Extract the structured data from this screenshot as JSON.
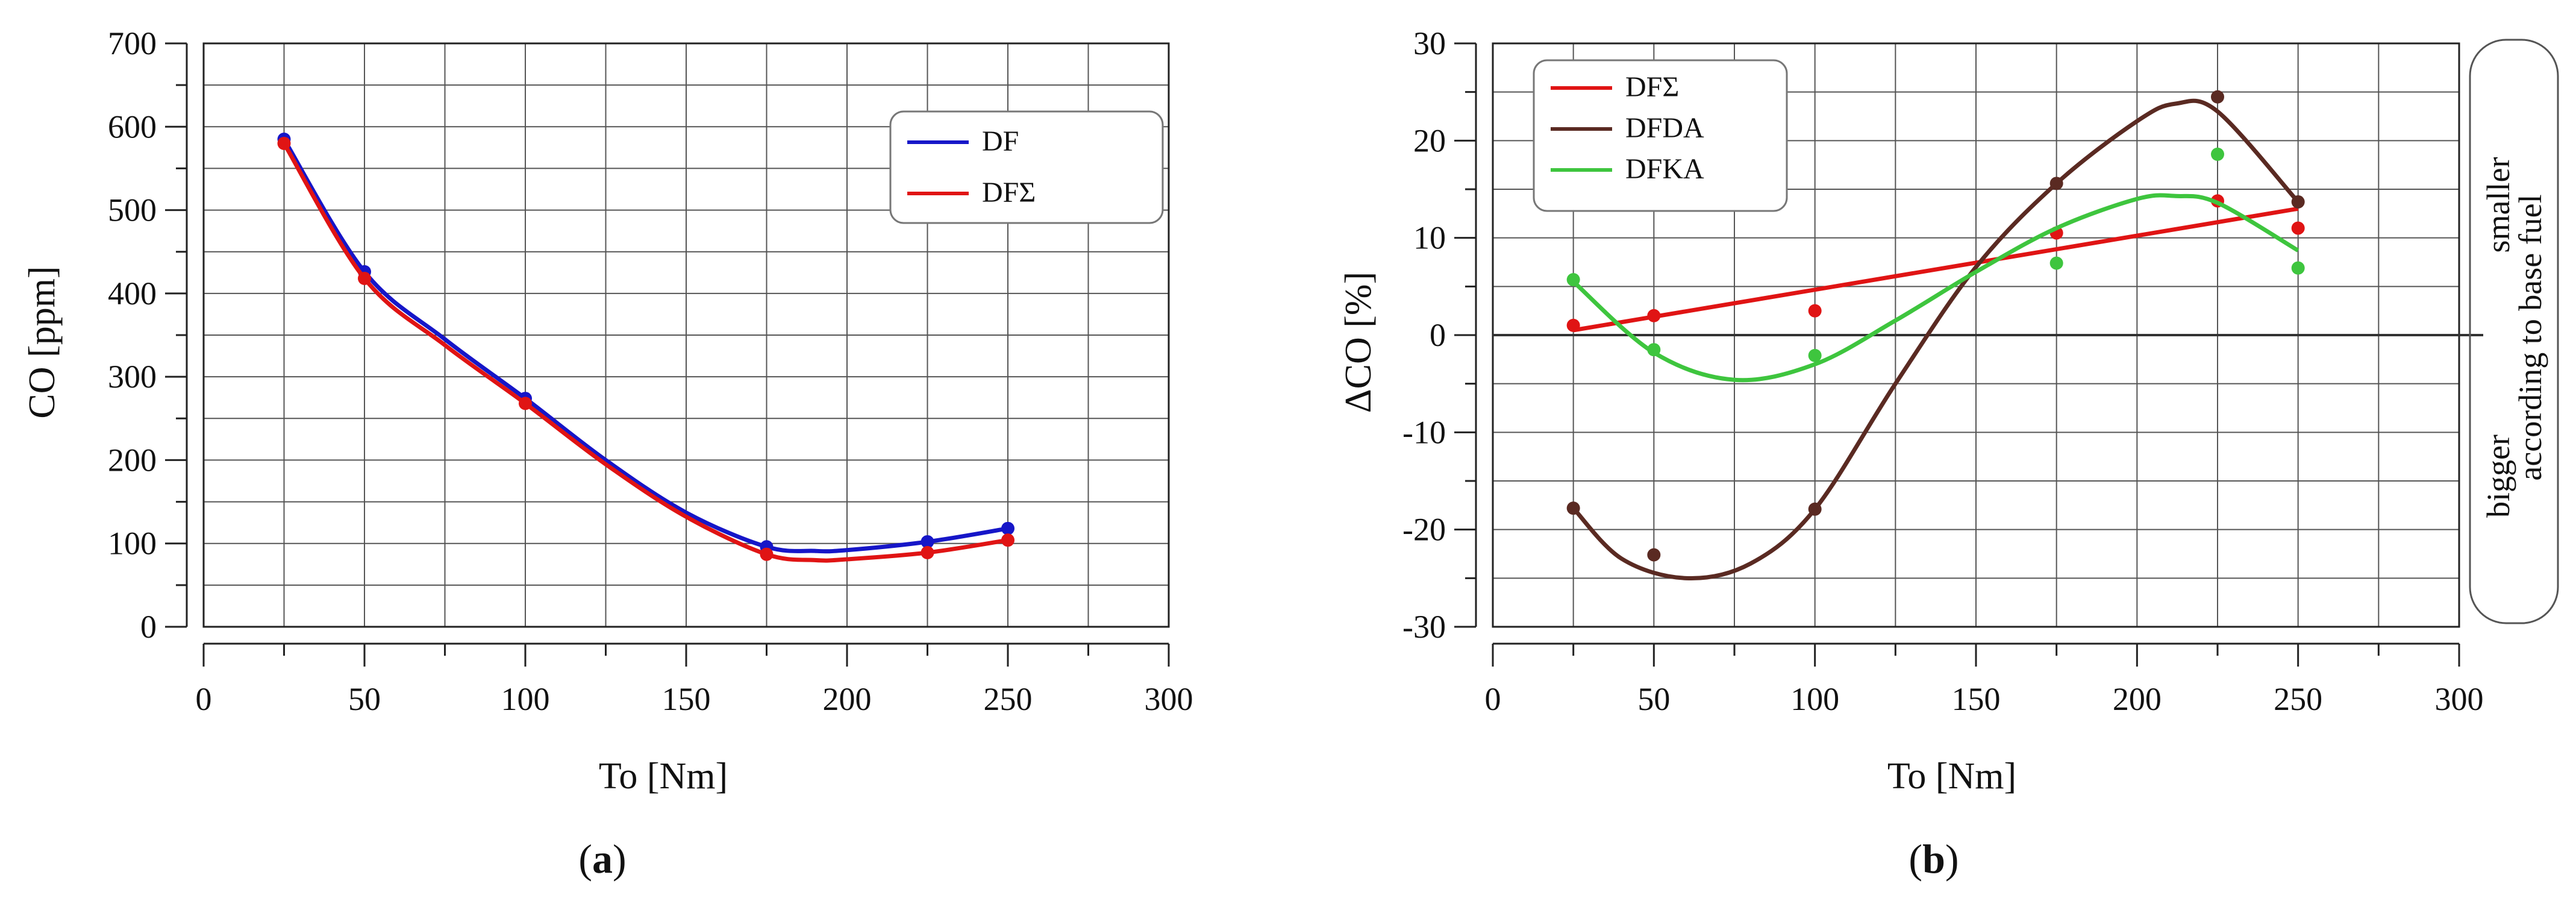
{
  "chart_data": [
    {
      "type": "line",
      "panel_label": "a",
      "xlabel": "To [Nm]",
      "ylabel": "CO [ppm]",
      "xlim": [
        0,
        300
      ],
      "ylim": [
        0,
        700
      ],
      "xticks": [
        0,
        50,
        100,
        150,
        200,
        250,
        300
      ],
      "yticks": [
        0,
        100,
        200,
        300,
        400,
        500,
        600,
        700
      ],
      "grid": true,
      "legend_position": "top-right",
      "series": [
        {
          "name": "DF",
          "color": "#1616c8",
          "points": [
            [
              25,
              585
            ],
            [
              50,
              426
            ],
            [
              100,
              274
            ],
            [
              175,
              96
            ],
            [
              225,
              102
            ],
            [
              250,
              118
            ]
          ],
          "curve": [
            [
              25,
              585
            ],
            [
              50,
              426
            ],
            [
              75,
              345
            ],
            [
              100,
              274
            ],
            [
              125,
              200
            ],
            [
              150,
              137
            ],
            [
              175,
              96
            ],
            [
              190,
              91
            ],
            [
              200,
              92
            ],
            [
              225,
              102
            ],
            [
              250,
              118
            ]
          ]
        },
        {
          "name": "DFΣ",
          "color": "#e01414",
          "points": [
            [
              25,
              580
            ],
            [
              50,
              418
            ],
            [
              100,
              268
            ],
            [
              175,
              87
            ],
            [
              225,
              89
            ],
            [
              250,
              104
            ]
          ],
          "curve": [
            [
              25,
              580
            ],
            [
              50,
              418
            ],
            [
              75,
              338
            ],
            [
              100,
              268
            ],
            [
              125,
              195
            ],
            [
              150,
              132
            ],
            [
              175,
              87
            ],
            [
              190,
              80
            ],
            [
              200,
              81
            ],
            [
              225,
              89
            ],
            [
              250,
              104
            ]
          ]
        }
      ]
    },
    {
      "type": "line",
      "panel_label": "b",
      "xlabel": "To [Nm]",
      "ylabel": "ΔCO [%]",
      "xlim": [
        0,
        300
      ],
      "ylim": [
        -30,
        30
      ],
      "xticks": [
        0,
        50,
        100,
        150,
        200,
        250,
        300
      ],
      "yticks": [
        -30,
        -20,
        -10,
        0,
        10,
        20,
        30
      ],
      "grid": true,
      "legend_position": "top-left",
      "annotation_top": "smaller",
      "annotation_middle": "according to base fuel",
      "annotation_bottom": "bigger",
      "series": [
        {
          "name": "DFΣ",
          "color": "#e01414",
          "points": [
            [
              25,
              1
            ],
            [
              50,
              2
            ],
            [
              100,
              2.5
            ],
            [
              175,
              10.5
            ],
            [
              225,
              13.8
            ],
            [
              250,
              11
            ]
          ],
          "curve": [
            [
              25,
              0.5
            ],
            [
              250,
              13
            ]
          ]
        },
        {
          "name": "DFDA",
          "color": "#5a2a22",
          "points": [
            [
              25,
              -17.8
            ],
            [
              50,
              -22.6
            ],
            [
              100,
              -17.9
            ],
            [
              175,
              15.6
            ],
            [
              225,
              24.5
            ],
            [
              250,
              13.7
            ]
          ],
          "curve": [
            [
              25,
              -17.8
            ],
            [
              40,
              -23.0
            ],
            [
              60,
              -25.0
            ],
            [
              80,
              -23.5
            ],
            [
              100,
              -17.9
            ],
            [
              125,
              -5.0
            ],
            [
              150,
              7.0
            ],
            [
              175,
              15.6
            ],
            [
              200,
              22.0
            ],
            [
              212,
              23.8
            ],
            [
              225,
              23.0
            ],
            [
              250,
              13.7
            ]
          ]
        },
        {
          "name": "DFKA",
          "color": "#3ec53e",
          "points": [
            [
              25,
              5.7
            ],
            [
              50,
              -1.5
            ],
            [
              100,
              -2.1
            ],
            [
              175,
              7.4
            ],
            [
              225,
              18.6
            ],
            [
              250,
              6.9
            ]
          ],
          "curve": [
            [
              25,
              5.5
            ],
            [
              50,
              -1.8
            ],
            [
              75,
              -4.6
            ],
            [
              100,
              -3.0
            ],
            [
              125,
              1.5
            ],
            [
              150,
              6.5
            ],
            [
              175,
              11.0
            ],
            [
              200,
              14.0
            ],
            [
              212,
              14.3
            ],
            [
              225,
              13.6
            ],
            [
              250,
              8.7
            ]
          ]
        }
      ]
    }
  ]
}
